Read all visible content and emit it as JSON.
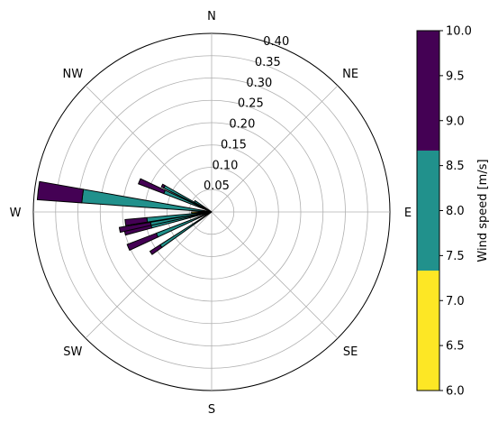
{
  "chart_data": {
    "type": "wind-rose",
    "grid": true,
    "compass_labels": [
      "N",
      "NE",
      "E",
      "SE",
      "S",
      "SW",
      "W",
      "NW"
    ],
    "radial_ticks": [
      0.05,
      0.1,
      0.15,
      0.2,
      0.25,
      0.3,
      0.35,
      0.4
    ],
    "radial_tick_labels": [
      "0.05",
      "0.10",
      "0.15",
      "0.20",
      "0.25",
      "0.30",
      "0.35",
      "0.40"
    ],
    "rmax": 0.4,
    "sectors": [
      {
        "direction_deg": 236,
        "width_deg": 3,
        "stacks": [
          {
            "bin": "6.0-7.33",
            "value": 0.0
          },
          {
            "bin": "7.33-8.67",
            "value": 0.137
          },
          {
            "bin": "8.67-10.0",
            "value": 0.164
          }
        ]
      },
      {
        "direction_deg": 247,
        "width_deg": 4,
        "stacks": [
          {
            "bin": "6.0-7.33",
            "value": 0.0
          },
          {
            "bin": "7.33-8.67",
            "value": 0.133
          },
          {
            "bin": "8.67-10.0",
            "value": 0.203
          }
        ]
      },
      {
        "direction_deg": 257,
        "width_deg": 4,
        "stacks": [
          {
            "bin": "6.0-7.33",
            "value": 0.0
          },
          {
            "bin": "7.33-8.67",
            "value": 0.139
          },
          {
            "bin": "8.67-10.0",
            "value": 0.2
          }
        ]
      },
      {
        "direction_deg": 259,
        "width_deg": 3,
        "stacks": [
          {
            "bin": "6.0-7.33",
            "value": 0.035
          },
          {
            "bin": "7.33-8.67",
            "value": 0.139
          },
          {
            "bin": "8.67-10.0",
            "value": 0.21
          }
        ]
      },
      {
        "direction_deg": 263,
        "width_deg": 4,
        "stacks": [
          {
            "bin": "6.0-7.33",
            "value": 0.0
          },
          {
            "bin": "7.33-8.67",
            "value": 0.146
          },
          {
            "bin": "8.67-10.0",
            "value": 0.195
          }
        ]
      },
      {
        "direction_deg": 277,
        "width_deg": 6,
        "stacks": [
          {
            "bin": "6.0-7.33",
            "value": 0.0
          },
          {
            "bin": "7.33-8.67",
            "value": 0.292
          },
          {
            "bin": "8.67-10.0",
            "value": 0.392
          }
        ]
      },
      {
        "direction_deg": 293,
        "width_deg": 4,
        "stacks": [
          {
            "bin": "6.0-7.33",
            "value": 0.0
          },
          {
            "bin": "7.33-8.67",
            "value": 0.115
          },
          {
            "bin": "8.67-10.0",
            "value": 0.176
          }
        ]
      },
      {
        "direction_deg": 298,
        "width_deg": 3,
        "stacks": [
          {
            "bin": "6.0-7.33",
            "value": 0.0
          },
          {
            "bin": "7.33-8.67",
            "value": 0.12
          },
          {
            "bin": "8.67-10.0",
            "value": 0.126
          }
        ]
      },
      {
        "direction_deg": 302,
        "width_deg": 5,
        "stacks": [
          {
            "bin": "6.0-7.33",
            "value": 0.0
          },
          {
            "bin": "7.33-8.67",
            "value": 0.045
          },
          {
            "bin": "8.67-10.0",
            "value": 0.045
          }
        ]
      },
      {
        "direction_deg": 268,
        "width_deg": 4,
        "stacks": [
          {
            "bin": "6.0-7.33",
            "value": 0.045
          },
          {
            "bin": "7.33-8.67",
            "value": 0.045
          },
          {
            "bin": "8.67-10.0",
            "value": 0.045
          }
        ]
      }
    ],
    "colorbar": {
      "label": "Wind speed [m/s]",
      "bins": [
        {
          "from": 6.0,
          "to": 7.333,
          "color": "#fde725"
        },
        {
          "from": 7.333,
          "to": 8.667,
          "color": "#21918c"
        },
        {
          "from": 8.667,
          "to": 10.0,
          "color": "#440154"
        }
      ],
      "ticks": [
        6.0,
        6.5,
        7.0,
        7.5,
        8.0,
        8.5,
        9.0,
        9.5,
        10.0
      ],
      "tick_labels": [
        "6.0",
        "6.5",
        "7.0",
        "7.5",
        "8.0",
        "8.5",
        "9.0",
        "9.5",
        "10.0"
      ]
    }
  }
}
